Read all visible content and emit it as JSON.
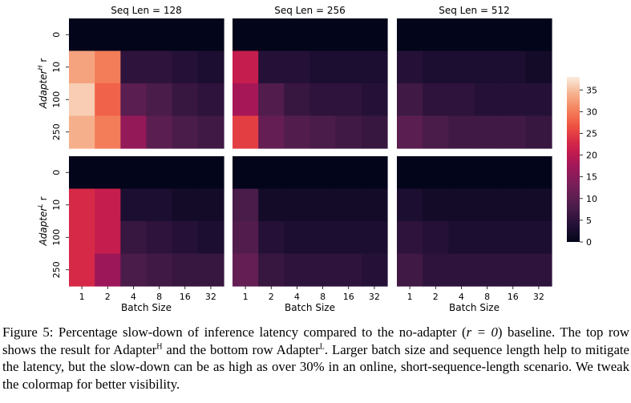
{
  "chart_data": {
    "type": "heatmap",
    "colormap": "rocket",
    "colorbar": {
      "min": 0,
      "max": 38,
      "ticks": [
        0,
        5,
        10,
        15,
        20,
        25,
        30,
        35
      ]
    },
    "column_titles": [
      "Seq Len = 128",
      "Seq Len = 256",
      "Seq Len = 512"
    ],
    "xlabel": "Batch Size",
    "xticks": [
      "1",
      "2",
      "4",
      "8",
      "16",
      "32"
    ],
    "yticks": [
      "0",
      "10",
      "100",
      "250"
    ],
    "rows": [
      {
        "ylabel_base": "Adapter",
        "ylabel_sup": "H",
        "ylabel_suffix": " r",
        "panels": [
          {
            "seq_len": 128,
            "values": [
              [
                0,
                0,
                0,
                0,
                0,
                0
              ],
              [
                33,
                30,
                5,
                5,
                4,
                3
              ],
              [
                36,
                28,
                10,
                8,
                6,
                5
              ],
              [
                34,
                30,
                16,
                10,
                8,
                7
              ]
            ]
          },
          {
            "seq_len": 256,
            "values": [
              [
                0,
                0,
                0,
                0,
                0,
                0
              ],
              [
                21,
                4,
                4,
                3,
                3,
                3
              ],
              [
                18,
                9,
                6,
                5,
                5,
                4
              ],
              [
                25,
                11,
                9,
                8,
                7,
                6
              ]
            ]
          },
          {
            "seq_len": 512,
            "values": [
              [
                0,
                0,
                0,
                0,
                0,
                0
              ],
              [
                4,
                3,
                3,
                3,
                3,
                2
              ],
              [
                7,
                5,
                5,
                4,
                4,
                4
              ],
              [
                10,
                8,
                7,
                7,
                7,
                6
              ]
            ]
          }
        ]
      },
      {
        "ylabel_base": "Adapter",
        "ylabel_sup": "L",
        "ylabel_suffix": " r",
        "panels": [
          {
            "seq_len": 128,
            "values": [
              [
                0,
                0,
                0,
                0,
                0,
                0
              ],
              [
                23,
                21,
                3,
                3,
                2,
                2
              ],
              [
                23,
                21,
                6,
                5,
                4,
                3
              ],
              [
                23,
                17,
                8,
                7,
                6,
                6
              ]
            ]
          },
          {
            "seq_len": 256,
            "values": [
              [
                0,
                0,
                0,
                0,
                0,
                0
              ],
              [
                8,
                2,
                2,
                2,
                2,
                2
              ],
              [
                9,
                4,
                3,
                3,
                3,
                3
              ],
              [
                11,
                6,
                5,
                5,
                5,
                4
              ]
            ]
          },
          {
            "seq_len": 512,
            "values": [
              [
                0,
                0,
                0,
                0,
                0,
                0
              ],
              [
                3,
                2,
                2,
                2,
                2,
                2
              ],
              [
                5,
                4,
                3,
                3,
                3,
                3
              ],
              [
                7,
                5,
                5,
                5,
                5,
                5
              ]
            ]
          }
        ]
      }
    ]
  },
  "caption": {
    "part1": "Figure 5: Percentage slow-down of inference latency compared to the no-adapter (",
    "math": "r = 0",
    "part2": ") baseline. The top row shows the result for Adapter",
    "sup_h": "H",
    "part3": " and the bottom row Adapter",
    "sup_l": "L",
    "part4": ". Larger batch size and sequence length help to mitigate the latency, but the slow-down can be as high as over 30% in an online, short-sequence-length scenario. We tweak the colormap for better visibility."
  }
}
